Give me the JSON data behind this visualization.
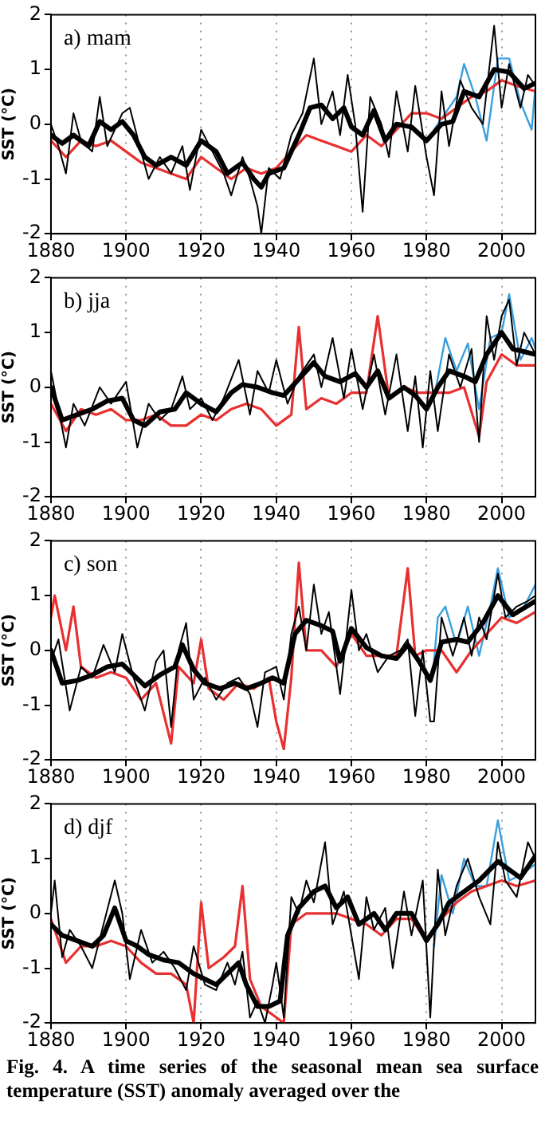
{
  "chart_data": [
    {
      "type": "line",
      "title": "a) mam",
      "ylabel": "SST (°C)",
      "xlim": [
        1880,
        2009
      ],
      "xticks": [
        1880,
        1900,
        1920,
        1940,
        1960,
        1980,
        2000
      ],
      "ylim": [
        -2,
        2
      ],
      "yticks": [
        -2,
        -1,
        0,
        1,
        2
      ],
      "grid": "x",
      "legend": false,
      "series": [
        {
          "color": "#3a9fe0",
          "x": [
            1982,
            1985,
            1988,
            1990,
            1993,
            1996,
            1999,
            2002,
            2005,
            2008,
            2009
          ],
          "values": [
            -0.1,
            0.2,
            0.5,
            1.1,
            0.5,
            -0.3,
            1.2,
            1.2,
            0.4,
            -0.1,
            0.7
          ]
        },
        {
          "color": "#e83030",
          "x": [
            1880,
            1884,
            1888,
            1892,
            1896,
            1900,
            1904,
            1908,
            1912,
            1916,
            1920,
            1924,
            1928,
            1932,
            1936,
            1940,
            1944,
            1948,
            1952,
            1956,
            1960,
            1964,
            1968,
            1972,
            1976,
            1980,
            1984,
            1988,
            1992,
            1996,
            2000,
            2004,
            2009
          ],
          "values": [
            -0.3,
            -0.6,
            -0.3,
            -0.4,
            -0.3,
            -0.5,
            -0.7,
            -0.8,
            -0.9,
            -1.0,
            -0.6,
            -0.8,
            -1.0,
            -0.8,
            -0.9,
            -0.8,
            -0.5,
            -0.2,
            -0.3,
            -0.4,
            -0.5,
            -0.2,
            -0.4,
            -0.1,
            0.2,
            0.2,
            0.1,
            0.3,
            0.5,
            0.6,
            0.8,
            0.7,
            0.6
          ]
        },
        {
          "color": "#000000",
          "x": [
            1880,
            1882,
            1884,
            1886,
            1888,
            1891,
            1893,
            1895,
            1899,
            1901,
            1904,
            1906,
            1909,
            1912,
            1915,
            1917,
            1920,
            1923,
            1926,
            1928,
            1931,
            1933,
            1935,
            1936,
            1938,
            1941,
            1944,
            1947,
            1950,
            1952,
            1955,
            1957,
            1959,
            1961,
            1963,
            1965,
            1968,
            1970,
            1972,
            1975,
            1977,
            1980,
            1982,
            1984,
            1986,
            1989,
            1992,
            1995,
            1998,
            2000,
            2002,
            2005,
            2007,
            2009
          ],
          "values": [
            0.0,
            -0.4,
            -0.9,
            0.2,
            -0.3,
            -0.5,
            0.5,
            -0.4,
            0.2,
            0.3,
            -0.5,
            -1.0,
            -0.6,
            -0.9,
            -0.4,
            -1.2,
            -0.1,
            -0.5,
            -0.9,
            -1.3,
            -0.6,
            -1.0,
            -1.5,
            -2.0,
            -0.8,
            -1.0,
            -0.2,
            0.2,
            1.2,
            0.0,
            0.6,
            -0.2,
            0.9,
            0.0,
            -1.6,
            0.5,
            0.0,
            -0.6,
            0.6,
            -0.5,
            0.7,
            -0.6,
            -1.3,
            0.6,
            -0.4,
            0.8,
            0.3,
            0.0,
            1.8,
            0.3,
            1.1,
            0.3,
            0.9,
            0.7
          ]
        },
        {
          "color": "#000000",
          "x": [
            1880,
            1883,
            1886,
            1890,
            1893,
            1896,
            1899,
            1902,
            1905,
            1908,
            1912,
            1916,
            1920,
            1924,
            1927,
            1931,
            1934,
            1936,
            1938,
            1942,
            1946,
            1949,
            1952,
            1955,
            1958,
            1960,
            1963,
            1966,
            1969,
            1972,
            1976,
            1980,
            1984,
            1987,
            1990,
            1994,
            1998,
            2002,
            2006,
            2009
          ],
          "values": [
            -0.2,
            -0.35,
            -0.2,
            -0.4,
            0.05,
            -0.1,
            0.05,
            -0.2,
            -0.6,
            -0.75,
            -0.6,
            -0.75,
            -0.3,
            -0.5,
            -0.9,
            -0.7,
            -1.0,
            -1.15,
            -0.9,
            -0.8,
            -0.2,
            0.3,
            0.35,
            0.1,
            0.3,
            -0.05,
            -0.2,
            0.25,
            -0.3,
            0.0,
            -0.05,
            -0.3,
            0.0,
            0.05,
            0.6,
            0.5,
            1.0,
            0.95,
            0.65,
            0.75
          ]
        }
      ]
    },
    {
      "type": "line",
      "title": "b) jja",
      "ylabel": "SST (°C)",
      "xlim": [
        1880,
        2009
      ],
      "xticks": [
        1880,
        1900,
        1920,
        1940,
        1960,
        1980,
        2000
      ],
      "ylim": [
        -2,
        2
      ],
      "yticks": [
        -2,
        -1,
        0,
        1,
        2
      ],
      "grid": "x",
      "legend": false,
      "series": [
        {
          "color": "#3a9fe0",
          "x": [
            1982,
            1985,
            1988,
            1991,
            1994,
            1997,
            2000,
            2002,
            2005,
            2008,
            2009
          ],
          "values": [
            -0.2,
            0.9,
            0.3,
            0.8,
            -0.4,
            0.9,
            1.0,
            1.7,
            0.5,
            0.9,
            0.7
          ]
        },
        {
          "color": "#e83030",
          "x": [
            1880,
            1884,
            1888,
            1892,
            1896,
            1900,
            1904,
            1908,
            1912,
            1916,
            1920,
            1924,
            1928,
            1932,
            1936,
            1940,
            1944,
            1946,
            1948,
            1952,
            1956,
            1960,
            1964,
            1967,
            1970,
            1974,
            1978,
            1982,
            1986,
            1990,
            1994,
            1996,
            2000,
            2004,
            2009
          ],
          "values": [
            -0.3,
            -0.8,
            -0.4,
            -0.5,
            -0.4,
            -0.6,
            -0.6,
            -0.5,
            -0.7,
            -0.7,
            -0.5,
            -0.6,
            -0.4,
            -0.3,
            -0.4,
            -0.7,
            -0.5,
            1.1,
            -0.4,
            -0.2,
            -0.3,
            -0.1,
            -0.1,
            1.3,
            -0.2,
            0.0,
            -0.1,
            -0.1,
            -0.1,
            0.0,
            -0.9,
            0.1,
            0.6,
            0.4,
            0.4
          ]
        },
        {
          "color": "#000000",
          "x": [
            1880,
            1882,
            1884,
            1886,
            1889,
            1893,
            1896,
            1900,
            1903,
            1906,
            1909,
            1912,
            1915,
            1917,
            1920,
            1923,
            1926,
            1930,
            1933,
            1935,
            1938,
            1940,
            1943,
            1946,
            1950,
            1952,
            1955,
            1958,
            1960,
            1963,
            1966,
            1969,
            1972,
            1975,
            1977,
            1979,
            1981,
            1983,
            1986,
            1989,
            1992,
            1994,
            1996,
            1998,
            2000,
            2002,
            2004,
            2006,
            2009
          ],
          "values": [
            0.3,
            -0.4,
            -1.1,
            -0.3,
            -0.7,
            0.0,
            -0.3,
            0.1,
            -1.1,
            -0.3,
            -0.6,
            -0.4,
            0.2,
            -0.4,
            -0.2,
            -0.6,
            -0.2,
            0.5,
            -0.5,
            0.3,
            -0.1,
            0.5,
            -0.3,
            0.2,
            0.6,
            0.0,
            0.9,
            -0.2,
            0.7,
            -0.4,
            0.6,
            -0.5,
            0.6,
            -0.8,
            0.2,
            -1.1,
            0.3,
            -0.8,
            0.6,
            0.0,
            0.7,
            -1.0,
            1.3,
            0.5,
            1.3,
            1.6,
            0.4,
            1.0,
            0.6
          ]
        },
        {
          "color": "#000000",
          "x": [
            1880,
            1883,
            1887,
            1891,
            1895,
            1899,
            1902,
            1905,
            1909,
            1913,
            1916,
            1920,
            1924,
            1928,
            1931,
            1935,
            1939,
            1942,
            1946,
            1950,
            1953,
            1957,
            1961,
            1964,
            1967,
            1970,
            1974,
            1977,
            1980,
            1983,
            1986,
            1990,
            1993,
            1996,
            2000,
            2003,
            2009
          ],
          "values": [
            0.0,
            -0.6,
            -0.5,
            -0.4,
            -0.25,
            -0.2,
            -0.6,
            -0.7,
            -0.45,
            -0.4,
            -0.1,
            -0.3,
            -0.45,
            -0.1,
            0.05,
            0.0,
            -0.1,
            -0.15,
            0.15,
            0.45,
            0.2,
            0.1,
            0.25,
            0.0,
            0.3,
            -0.2,
            0.0,
            -0.15,
            -0.4,
            0.0,
            0.3,
            0.2,
            0.1,
            0.6,
            1.0,
            0.7,
            0.6
          ]
        }
      ]
    },
    {
      "type": "line",
      "title": "c) son",
      "ylabel": "SST (°C)",
      "xlim": [
        1880,
        2009
      ],
      "xticks": [
        1880,
        1900,
        1920,
        1940,
        1960,
        1980,
        2000
      ],
      "ylim": [
        -2,
        2
      ],
      "yticks": [
        -2,
        -1,
        0,
        1,
        2
      ],
      "grid": "x",
      "legend": false,
      "series": [
        {
          "color": "#3a9fe0",
          "x": [
            1982,
            1983,
            1985,
            1988,
            1991,
            1994,
            1997,
            1999,
            2002,
            2006,
            2009
          ],
          "values": [
            -0.2,
            0.6,
            0.8,
            0.1,
            0.8,
            -0.1,
            0.8,
            1.5,
            0.6,
            0.8,
            1.2
          ]
        },
        {
          "color": "#e83030",
          "x": [
            1880,
            1881,
            1884,
            1886,
            1888,
            1892,
            1896,
            1900,
            1904,
            1908,
            1912,
            1914,
            1918,
            1920,
            1922,
            1926,
            1930,
            1934,
            1938,
            1940,
            1942,
            1944,
            1946,
            1948,
            1952,
            1956,
            1960,
            1964,
            1968,
            1972,
            1975,
            1977,
            1980,
            1984,
            1988,
            1992,
            1996,
            2000,
            2004,
            2009
          ],
          "values": [
            0.6,
            1.0,
            0.0,
            0.8,
            -0.3,
            -0.5,
            -0.4,
            -0.5,
            -0.9,
            -0.6,
            -1.7,
            -0.3,
            -0.6,
            0.2,
            -0.7,
            -0.9,
            -0.6,
            -0.7,
            -0.5,
            -1.3,
            -1.8,
            -0.5,
            1.6,
            0.0,
            0.0,
            -0.3,
            0.3,
            -0.1,
            -0.1,
            -0.1,
            1.5,
            -0.1,
            0.0,
            0.0,
            -0.4,
            0.0,
            0.3,
            0.6,
            0.5,
            0.7
          ]
        },
        {
          "color": "#000000",
          "x": [
            1880,
            1882,
            1885,
            1888,
            1891,
            1894,
            1897,
            1899,
            1902,
            1905,
            1908,
            1910,
            1912,
            1914,
            1916,
            1918,
            1921,
            1924,
            1927,
            1930,
            1933,
            1935,
            1937,
            1940,
            1942,
            1944,
            1946,
            1948,
            1950,
            1952,
            1954,
            1957,
            1960,
            1962,
            1964,
            1967,
            1970,
            1973,
            1975,
            1977,
            1979,
            1981,
            1982,
            1984,
            1987,
            1990,
            1992,
            1994,
            1996,
            1999,
            2001,
            2004,
            2007,
            2009
          ],
          "values": [
            -0.2,
            0.2,
            -1.1,
            -0.3,
            -0.5,
            0.1,
            -0.4,
            0.3,
            -0.5,
            -1.1,
            -0.2,
            0.0,
            -1.4,
            0.0,
            0.5,
            -0.9,
            -0.5,
            -0.9,
            -0.6,
            -0.5,
            -0.8,
            -1.4,
            -0.4,
            -0.3,
            -0.9,
            0.3,
            0.8,
            0.0,
            1.2,
            0.3,
            0.7,
            -0.8,
            1.1,
            0.0,
            0.3,
            -0.4,
            -0.1,
            0.0,
            0.2,
            -1.2,
            0.0,
            -1.3,
            -1.3,
            0.6,
            -0.1,
            0.6,
            -0.1,
            0.6,
            0.2,
            1.4,
            0.6,
            0.8,
            0.9,
            1.0
          ]
        },
        {
          "color": "#000000",
          "x": [
            1880,
            1883,
            1887,
            1891,
            1895,
            1899,
            1902,
            1905,
            1909,
            1913,
            1915,
            1918,
            1921,
            1925,
            1929,
            1932,
            1936,
            1939,
            1942,
            1945,
            1948,
            1952,
            1955,
            1957,
            1960,
            1964,
            1968,
            1972,
            1975,
            1978,
            1981,
            1984,
            1988,
            1991,
            1995,
            1999,
            2003,
            2009
          ],
          "values": [
            0.0,
            -0.6,
            -0.55,
            -0.45,
            -0.3,
            -0.25,
            -0.45,
            -0.65,
            -0.45,
            -0.3,
            0.1,
            -0.35,
            -0.6,
            -0.7,
            -0.6,
            -0.7,
            -0.6,
            -0.5,
            -0.6,
            0.3,
            0.55,
            0.45,
            0.35,
            -0.2,
            0.4,
            0.05,
            -0.1,
            -0.15,
            0.1,
            -0.2,
            -0.55,
            0.15,
            0.2,
            0.15,
            0.5,
            1.0,
            0.65,
            0.9
          ]
        }
      ]
    },
    {
      "type": "line",
      "title": "d) djf",
      "ylabel": "SST (°C)",
      "xlim": [
        1880,
        2009
      ],
      "xticks": [
        1880,
        1900,
        1920,
        1940,
        1960,
        1980,
        2000
      ],
      "ylim": [
        -2,
        2
      ],
      "yticks": [
        -2,
        -1,
        0,
        1,
        2
      ],
      "grid": "x",
      "legend": false,
      "annotations": [
        "Fig. 4. A time series of the seasonal mean sea surface temperature (SST) anomaly averaged over the"
      ],
      "series": [
        {
          "color": "#3a9fe0",
          "x": [
            1982,
            1984,
            1987,
            1990,
            1993,
            1996,
            1999,
            2002,
            2005,
            2009
          ],
          "values": [
            -0.6,
            0.7,
            0.0,
            1.0,
            0.5,
            0.5,
            1.7,
            0.6,
            0.7,
            0.9
          ]
        },
        {
          "color": "#e83030",
          "x": [
            1880,
            1884,
            1888,
            1892,
            1896,
            1900,
            1904,
            1908,
            1912,
            1916,
            1918,
            1920,
            1922,
            1926,
            1929,
            1931,
            1933,
            1936,
            1940,
            1942,
            1944,
            1948,
            1952,
            1956,
            1960,
            1964,
            1968,
            1972,
            1976,
            1980,
            1984,
            1988,
            1992,
            1996,
            2000,
            2004,
            2009
          ],
          "values": [
            -0.1,
            -0.9,
            -0.6,
            -0.6,
            -0.5,
            -0.6,
            -0.9,
            -1.1,
            -1.1,
            -1.3,
            -2.0,
            0.2,
            -1.0,
            -0.8,
            -0.6,
            0.5,
            -1.2,
            -1.7,
            -1.9,
            -2.0,
            -0.2,
            0.0,
            0.0,
            0.0,
            -0.1,
            -0.2,
            -0.4,
            -0.1,
            -0.1,
            -0.5,
            -0.1,
            0.2,
            0.4,
            0.5,
            0.6,
            0.5,
            0.6
          ]
        },
        {
          "color": "#000000",
          "x": [
            1880,
            1881,
            1883,
            1885,
            1888,
            1891,
            1894,
            1897,
            1899,
            1901,
            1904,
            1907,
            1910,
            1913,
            1916,
            1918,
            1921,
            1924,
            1927,
            1929,
            1931,
            1933,
            1935,
            1937,
            1939,
            1940,
            1942,
            1944,
            1946,
            1948,
            1950,
            1953,
            1955,
            1958,
            1960,
            1962,
            1964,
            1966,
            1969,
            1971,
            1974,
            1976,
            1979,
            1981,
            1983,
            1985,
            1988,
            1991,
            1994,
            1997,
            1999,
            2001,
            2004,
            2007,
            2009
          ],
          "values": [
            0.0,
            0.6,
            -0.8,
            -0.3,
            -0.6,
            -1.0,
            -0.2,
            0.6,
            0.0,
            -1.2,
            -0.3,
            -0.9,
            -0.7,
            -1.0,
            -1.4,
            -0.6,
            -1.3,
            -1.4,
            -0.9,
            -1.3,
            -0.7,
            -1.9,
            -1.6,
            -2.0,
            -1.3,
            -0.9,
            -1.9,
            0.3,
            0.0,
            0.6,
            0.2,
            1.3,
            -0.2,
            0.4,
            -0.4,
            -1.2,
            0.3,
            -0.3,
            0.1,
            -1.0,
            0.4,
            -0.4,
            0.6,
            -1.9,
            0.8,
            -0.4,
            0.5,
            1.0,
            0.3,
            -0.2,
            1.3,
            0.6,
            0.3,
            1.3,
            1.0
          ]
        },
        {
          "color": "#000000",
          "x": [
            1880,
            1883,
            1887,
            1891,
            1894,
            1897,
            1900,
            1903,
            1906,
            1910,
            1914,
            1918,
            1921,
            1924,
            1927,
            1930,
            1932,
            1935,
            1938,
            1941,
            1943,
            1946,
            1950,
            1953,
            1956,
            1959,
            1962,
            1966,
            1969,
            1972,
            1976,
            1980,
            1983,
            1986,
            1990,
            1994,
            1999,
            2002,
            2005,
            2009
          ],
          "values": [
            -0.2,
            -0.4,
            -0.5,
            -0.6,
            -0.4,
            0.1,
            -0.5,
            -0.6,
            -0.75,
            -0.85,
            -0.9,
            -1.1,
            -1.2,
            -1.3,
            -1.1,
            -0.9,
            -1.3,
            -1.7,
            -1.7,
            -1.6,
            -0.4,
            0.1,
            0.4,
            0.5,
            0.1,
            0.3,
            -0.2,
            0.0,
            -0.3,
            0.0,
            0.0,
            -0.5,
            -0.2,
            0.2,
            0.4,
            0.6,
            0.95,
            0.8,
            0.65,
            1.05
          ]
        }
      ]
    }
  ]
}
